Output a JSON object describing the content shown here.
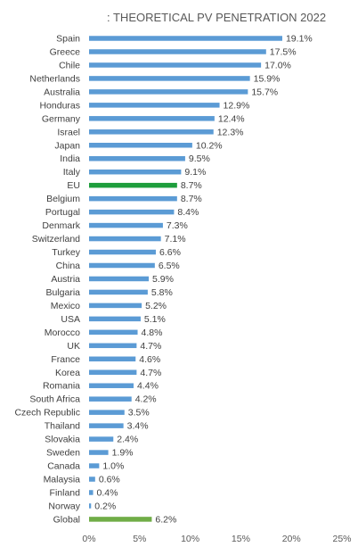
{
  "chart_data": {
    "type": "bar",
    "orientation": "horizontal",
    "title": ": THEORETICAL PV PENETRATION 2022",
    "xlabel": "",
    "ylabel": "",
    "xlim": [
      0,
      25
    ],
    "xticks": [
      "0%",
      "5%",
      "10%",
      "15%",
      "20%",
      "25%"
    ],
    "grid": false,
    "colors": {
      "default": "#5b9bd5",
      "eu": "#1e9e3c",
      "global": "#70ad47"
    },
    "categories": [
      "Spain",
      "Greece",
      "Chile",
      "Netherlands",
      "Australia",
      "Honduras",
      "Germany",
      "Israel",
      "Japan",
      "India",
      "Italy",
      "EU",
      "Belgium",
      "Portugal",
      "Denmark",
      "Switzerland",
      "Turkey",
      "China",
      "Austria",
      "Bulgaria",
      "Mexico",
      "USA",
      "Morocco",
      "UK",
      "France",
      "Korea",
      "Romania",
      "South Africa",
      "Czech Republic",
      "Thailand",
      "Slovakia",
      "Sweden",
      "Canada",
      "Malaysia",
      "Finland",
      "Norway",
      "Global"
    ],
    "values": [
      19.1,
      17.5,
      17.0,
      15.9,
      15.7,
      12.9,
      12.4,
      12.3,
      10.2,
      9.5,
      9.1,
      8.7,
      8.7,
      8.4,
      7.3,
      7.1,
      6.6,
      6.5,
      5.9,
      5.8,
      5.2,
      5.1,
      4.8,
      4.7,
      4.6,
      4.7,
      4.4,
      4.2,
      3.5,
      3.4,
      2.4,
      1.9,
      1.0,
      0.6,
      0.4,
      0.2,
      6.2
    ],
    "labels": [
      "19.1%",
      "17.5%",
      "17.0%",
      "15.9%",
      "15.7%",
      "12.9%",
      "12.4%",
      "12.3%",
      "10.2%",
      "9.5%",
      "9.1%",
      "8.7%",
      "8.7%",
      "8.4%",
      "7.3%",
      "7.1%",
      "6.6%",
      "6.5%",
      "5.9%",
      "5.8%",
      "5.2%",
      "5.1%",
      "4.8%",
      "4.7%",
      "4.6%",
      "4.7%",
      "4.4%",
      "4.2%",
      "3.5%",
      "3.4%",
      "2.4%",
      "1.9%",
      "1.0%",
      "0.6%",
      "0.4%",
      "0.2%",
      "6.2%"
    ],
    "highlight": {
      "EU": "eu",
      "Global": "global"
    }
  }
}
